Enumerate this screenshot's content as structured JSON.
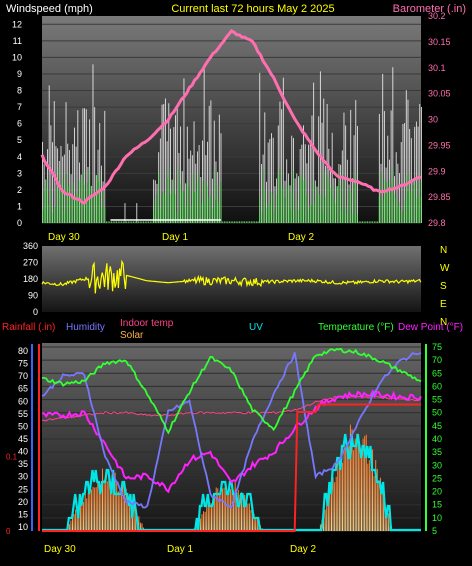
{
  "header": {
    "left": "Windspeed (mph)",
    "center": "Current last 72 hours May 2 2025",
    "right": "Barometer (.in)"
  },
  "colors": {
    "wind_gust": "#ffffff",
    "wind_avg": "#66ee66",
    "barometer": "#ff6fb0",
    "direction": "#ffff00",
    "rain": "#ff2222",
    "humidity": "#7777ff",
    "indoor": "#ff4488",
    "solar": "#ffb04a",
    "uv": "#00e6e6",
    "temperature": "#33ff33",
    "dewpoint": "#ff22ff"
  },
  "day_labels": [
    "Day 30",
    "Day 1",
    "Day 2"
  ],
  "wind_panel": {
    "ylabel": "Windspeed (mph)",
    "y_ticks": [
      "0",
      "1",
      "2",
      "3",
      "4",
      "5",
      "6",
      "7",
      "8",
      "9",
      "10",
      "11",
      "12"
    ],
    "baro_ticks": [
      "29.8",
      "29.85",
      "29.9",
      "29.95",
      "30",
      "30.05",
      "30.1",
      "30.15",
      "30.2"
    ]
  },
  "dir_panel": {
    "y_ticks": [
      "360",
      "270",
      "180",
      "90",
      "0"
    ],
    "compass": [
      "N",
      "W",
      "S",
      "E",
      "N"
    ]
  },
  "bottom_panel": {
    "labels": {
      "rain": "Rainfall (.in)",
      "humidity": "Humidity",
      "indoor": "Indoor temp",
      "solar": "Solar",
      "uv": "UV",
      "temperature": "Temperature (°F)",
      "dewpoint": "Dew Point (°F)"
    },
    "hum_ticks": [
      "10",
      "15",
      "20",
      "25",
      "30",
      "35",
      "40",
      "45",
      "50",
      "55",
      "60",
      "65",
      "70",
      "75",
      "80"
    ],
    "rain_ticks": [
      "0",
      "0.1"
    ],
    "temp_ticks": [
      "5",
      "10",
      "15",
      "20",
      "25",
      "30",
      "35",
      "40",
      "45",
      "50",
      "55",
      "60",
      "65",
      "70",
      "75"
    ]
  },
  "chart_data": [
    {
      "type": "line",
      "title": "Current last 72 hours May 2 2025",
      "xlabel": "",
      "ylabel": "Windspeed (mph)",
      "y2label": "Barometer (.in)",
      "x_categories": [
        "Day 30",
        "Day 1",
        "Day 2"
      ],
      "ylim": [
        0,
        12.5
      ],
      "y2lim": [
        29.8,
        30.2
      ],
      "series": [
        {
          "name": "Barometer (.in)",
          "axis": "right",
          "x": [
            0,
            4,
            8,
            12,
            16,
            20,
            24,
            28,
            32,
            36,
            40,
            44,
            48,
            52,
            56,
            60,
            64,
            68,
            72
          ],
          "values": [
            29.93,
            29.86,
            29.84,
            29.87,
            29.93,
            29.96,
            30.0,
            30.06,
            30.12,
            30.17,
            30.15,
            30.08,
            30.0,
            29.94,
            29.89,
            29.88,
            29.86,
            29.87,
            29.89
          ]
        }
      ]
    },
    {
      "type": "line",
      "title": "",
      "ylabel": "",
      "ylim": [
        0,
        360
      ],
      "series": [
        {
          "name": "",
          "x": [
            0,
            4,
            8,
            12,
            16,
            20,
            24,
            28,
            32,
            36,
            40,
            44,
            48,
            52,
            56,
            60,
            64,
            68,
            72
          ],
          "values": [
            160,
            150,
            180,
            190,
            200,
            170,
            160,
            170,
            170,
            170,
            165,
            165,
            170,
            170,
            160,
            160,
            170,
            165,
            170
          ]
        }
      ]
    },
    {
      "type": "line",
      "title": "",
      "x_categories": [
        "Day 30",
        "Day 1",
        "Day 2"
      ],
      "series": [
        {
          "name": "Temperature (°F)",
          "axis": "right",
          "unit": "°F",
          "x": [
            0,
            4,
            8,
            12,
            16,
            20,
            24,
            28,
            32,
            36,
            40,
            44,
            48,
            52,
            56,
            60,
            64,
            68,
            72
          ],
          "values": [
            63,
            61,
            62,
            69,
            70,
            57,
            43,
            58,
            71,
            66,
            51,
            44,
            58,
            72,
            74,
            73,
            70,
            66,
            62
          ]
        },
        {
          "name": "Dew Point (°F)",
          "axis": "right",
          "unit": "°F",
          "x": [
            0,
            4,
            8,
            12,
            16,
            20,
            24,
            28,
            32,
            36,
            40,
            44,
            48,
            52,
            56,
            60,
            64,
            68,
            72
          ],
          "values": [
            49,
            49,
            50,
            38,
            25,
            26,
            21,
            32,
            35,
            23,
            30,
            35,
            44,
            52,
            56,
            57,
            57,
            56,
            56
          ]
        },
        {
          "name": "Humidity",
          "axis": "left",
          "unit": "%",
          "x": [
            0,
            4,
            8,
            12,
            16,
            20,
            24,
            28,
            32,
            36,
            40,
            44,
            48,
            52,
            56,
            60,
            64,
            68,
            72
          ],
          "values": [
            62,
            70,
            71,
            38,
            20,
            18,
            56,
            60,
            23,
            18,
            44,
            63,
            79,
            30,
            35,
            51,
            67,
            76,
            80
          ]
        },
        {
          "name": "Indoor temp",
          "axis": "right",
          "unit": "°F",
          "x": [
            0,
            4,
            8,
            12,
            16,
            20,
            24,
            28,
            32,
            36,
            40,
            44,
            48,
            52,
            56,
            60,
            64,
            68,
            72
          ],
          "values": [
            47,
            48,
            49,
            50,
            50,
            49,
            49,
            50,
            50,
            50,
            50,
            50,
            51,
            54,
            56,
            56,
            56,
            55,
            55
          ]
        },
        {
          "name": "Rainfall (.in)",
          "axis": "rain",
          "unit": "in",
          "x": [
            0,
            48,
            48.5,
            52,
            52.5,
            72
          ],
          "values": [
            0,
            0,
            0.16,
            0.16,
            0.17,
            0.17
          ]
        }
      ]
    }
  ]
}
